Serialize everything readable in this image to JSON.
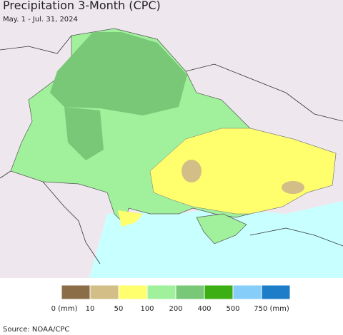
{
  "header": {
    "title": "Precipitation 3-Month (CPC)",
    "subtitle": "May. 1 - Jul. 31, 2024"
  },
  "legend": {
    "items": [
      {
        "color": "#8b6e47",
        "label": "0 (mm)"
      },
      {
        "color": "#d2be86",
        "label": "10"
      },
      {
        "color": "#ffff6e",
        "label": "50"
      },
      {
        "color": "#a0f09c",
        "label": "100"
      },
      {
        "color": "#78c878",
        "label": "200"
      },
      {
        "color": "#3caf14",
        "label": "400"
      },
      {
        "color": "#87cdfa",
        "label": "500"
      },
      {
        "color": "#1e7dc8",
        "label": "750 (mm)"
      }
    ]
  },
  "footer": {
    "source": "Source: NOAA/CPC"
  }
}
